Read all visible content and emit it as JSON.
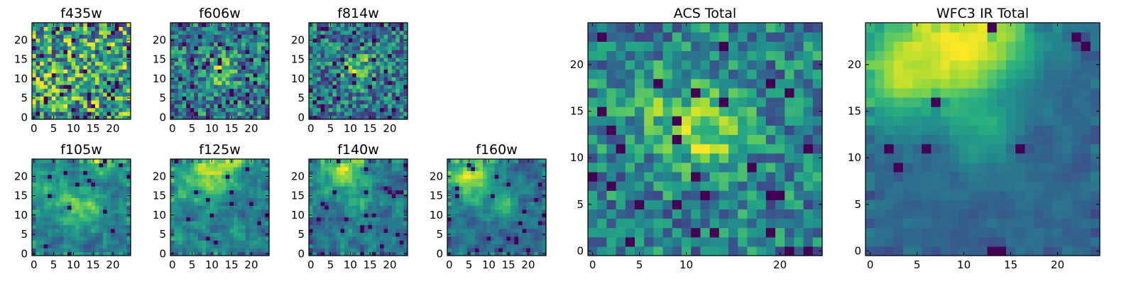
{
  "chart_data": [
    {
      "type": "heatmap",
      "title": "f435w",
      "colormap": "viridis",
      "grid_size": 25,
      "grid": false,
      "xlim": [
        0,
        25
      ],
      "ylim": [
        0,
        25
      ],
      "xticks": [
        0,
        5,
        10,
        15,
        20
      ],
      "yticks": [
        0,
        5,
        10,
        15,
        20
      ],
      "source": {
        "seed": 11,
        "noise": 0.42,
        "base": 0.58,
        "dark": 0.06,
        "blobs": []
      }
    },
    {
      "type": "heatmap",
      "title": "f606w",
      "colormap": "viridis",
      "grid_size": 25,
      "grid": false,
      "xlim": [
        0,
        25
      ],
      "ylim": [
        0,
        25
      ],
      "xticks": [
        0,
        5,
        10,
        15,
        20
      ],
      "yticks": [
        0,
        5,
        10,
        15,
        20
      ],
      "source": {
        "seed": 23,
        "noise": 0.38,
        "base": 0.52,
        "dark": 0.05,
        "blobs": [
          [
            12,
            12,
            3,
            0.35
          ]
        ]
      }
    },
    {
      "type": "heatmap",
      "title": "f814w",
      "colormap": "viridis",
      "grid_size": 25,
      "grid": false,
      "xlim": [
        0,
        25
      ],
      "ylim": [
        0,
        25
      ],
      "xticks": [
        0,
        5,
        10,
        15,
        20
      ],
      "yticks": [
        0,
        5,
        10,
        15,
        20
      ],
      "source": {
        "seed": 37,
        "noise": 0.38,
        "base": 0.52,
        "dark": 0.06,
        "blobs": [
          [
            12,
            13,
            3,
            0.4
          ]
        ]
      }
    },
    {
      "type": "heatmap",
      "title": "f105w",
      "colormap": "viridis",
      "grid_size": 25,
      "grid": false,
      "xlim": [
        0,
        25
      ],
      "ylim": [
        0,
        25
      ],
      "xticks": [
        0,
        5,
        10,
        15,
        20
      ],
      "yticks": [
        0,
        5,
        10,
        15,
        20
      ],
      "source": {
        "seed": 41,
        "noise": 0.26,
        "base": 0.48,
        "dark": 0.02,
        "blobs": [
          [
            12,
            12,
            3.5,
            0.35
          ],
          [
            17,
            24,
            3,
            0.4
          ],
          [
            2,
            17,
            4,
            0.2
          ]
        ]
      }
    },
    {
      "type": "heatmap",
      "title": "f125w",
      "colormap": "viridis",
      "grid_size": 25,
      "grid": false,
      "xlim": [
        0,
        25
      ],
      "ylim": [
        0,
        25
      ],
      "xticks": [
        0,
        5,
        10,
        15,
        20
      ],
      "yticks": [
        0,
        5,
        10,
        15,
        20
      ],
      "source": {
        "seed": 53,
        "noise": 0.26,
        "base": 0.45,
        "dark": 0.03,
        "blobs": [
          [
            12,
            23,
            4,
            0.45
          ],
          [
            5,
            19,
            4,
            0.2
          ]
        ]
      }
    },
    {
      "type": "heatmap",
      "title": "f140w",
      "colormap": "viridis",
      "grid_size": 25,
      "grid": false,
      "xlim": [
        0,
        25
      ],
      "ylim": [
        0,
        25
      ],
      "xticks": [
        0,
        5,
        10,
        15,
        20
      ],
      "yticks": [
        0,
        5,
        10,
        15,
        20
      ],
      "source": {
        "seed": 67,
        "noise": 0.26,
        "base": 0.42,
        "dark": 0.03,
        "blobs": [
          [
            8,
            22,
            4,
            0.5
          ],
          [
            12,
            12,
            2.5,
            0.2
          ]
        ]
      }
    },
    {
      "type": "heatmap",
      "title": "f160w",
      "colormap": "viridis",
      "grid_size": 25,
      "grid": false,
      "xlim": [
        0,
        25
      ],
      "ylim": [
        0,
        25
      ],
      "xticks": [
        0,
        5,
        10,
        15,
        20
      ],
      "yticks": [
        0,
        5,
        10,
        15,
        20
      ],
      "source": {
        "seed": 71,
        "noise": 0.24,
        "base": 0.4,
        "dark": 0.03,
        "blobs": [
          [
            5,
            20,
            4.5,
            0.55
          ],
          [
            14,
            13,
            2.5,
            0.28
          ]
        ]
      }
    },
    {
      "type": "heatmap",
      "title": "ACS Total",
      "colormap": "viridis",
      "grid_size": 25,
      "grid": false,
      "xlim": [
        0,
        25
      ],
      "ylim": [
        0,
        25
      ],
      "xticks": [
        0,
        5,
        10,
        20
      ],
      "yticks": [
        0,
        5,
        10,
        15,
        20
      ],
      "source": {
        "seed": 83,
        "noise": 0.32,
        "base": 0.58,
        "dark": 0.05,
        "blobs": [
          [
            12,
            13,
            3,
            0.45
          ],
          [
            7,
            15,
            3,
            0.2
          ]
        ]
      }
    },
    {
      "type": "heatmap",
      "title": "WFC3 IR Total",
      "colormap": "viridis",
      "grid_size": 25,
      "grid": false,
      "xlim": [
        0,
        25
      ],
      "ylim": [
        0,
        25
      ],
      "xticks": [
        0,
        5,
        10,
        15,
        20
      ],
      "yticks": [
        0,
        5,
        10,
        15,
        20
      ],
      "source": {
        "seed": 97,
        "noise": 0.12,
        "base": 0.38,
        "dark": 0.02,
        "blobs": [
          [
            7,
            22,
            5,
            0.55
          ],
          [
            13,
            23,
            4,
            0.4
          ],
          [
            2,
            18,
            3.5,
            0.3
          ],
          [
            12,
            12,
            2.5,
            0.25
          ]
        ]
      }
    }
  ]
}
